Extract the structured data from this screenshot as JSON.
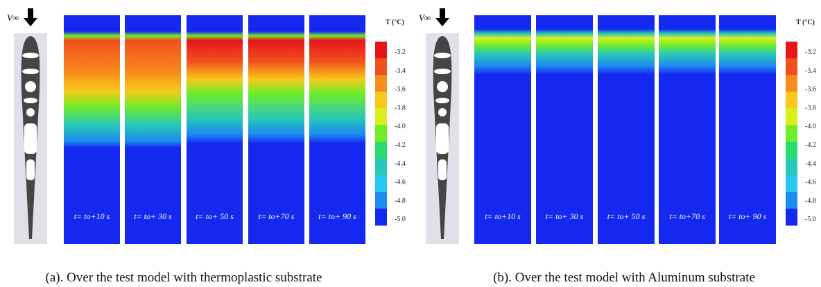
{
  "panels": [
    {
      "velocity_label": "V∞",
      "frames": [
        "t= to+10 s",
        "t= to+ 30 s",
        "t= to+ 50 s",
        "t= to+70 s",
        "t= to+ 90 s"
      ],
      "colorbar": {
        "title": "T (°C)",
        "ticks": [
          "-3.2",
          "-3.4",
          "-3.6",
          "-3.8",
          "-4.0",
          "-4.2",
          "-4.4",
          "-4.6",
          "-4.8",
          "-5.0"
        ],
        "colors": [
          "#e8141c",
          "#f0501c",
          "#f88c1c",
          "#f8c81c",
          "#d8f01c",
          "#70ec28",
          "#28dc70",
          "#28c8b8",
          "#28c8f0",
          "#1c8cf0",
          "#1428f0"
        ]
      },
      "caption": "(a). Over the test model with thermoplastic substrate"
    },
    {
      "velocity_label": "V∞",
      "frames": [
        "t= to+10 s",
        "t= to+ 30 s",
        "t= to+ 50 s",
        "t= to+70 s",
        "t= to+ 90 s"
      ],
      "colorbar": {
        "title": "T (°C)",
        "ticks": [
          "-3.2",
          "-3.4",
          "-3.6",
          "-3.8",
          "-4.0",
          "-4.2",
          "-4.4",
          "-4.6",
          "-4.8",
          "-5.0"
        ],
        "colors": [
          "#e8141c",
          "#f0501c",
          "#f88c1c",
          "#f8c81c",
          "#d8f01c",
          "#70ec28",
          "#28dc70",
          "#28c8b8",
          "#28c8f0",
          "#1c8cf0",
          "#1428f0"
        ]
      },
      "caption": "(b). Over the test model with Aluminum substrate"
    }
  ]
}
